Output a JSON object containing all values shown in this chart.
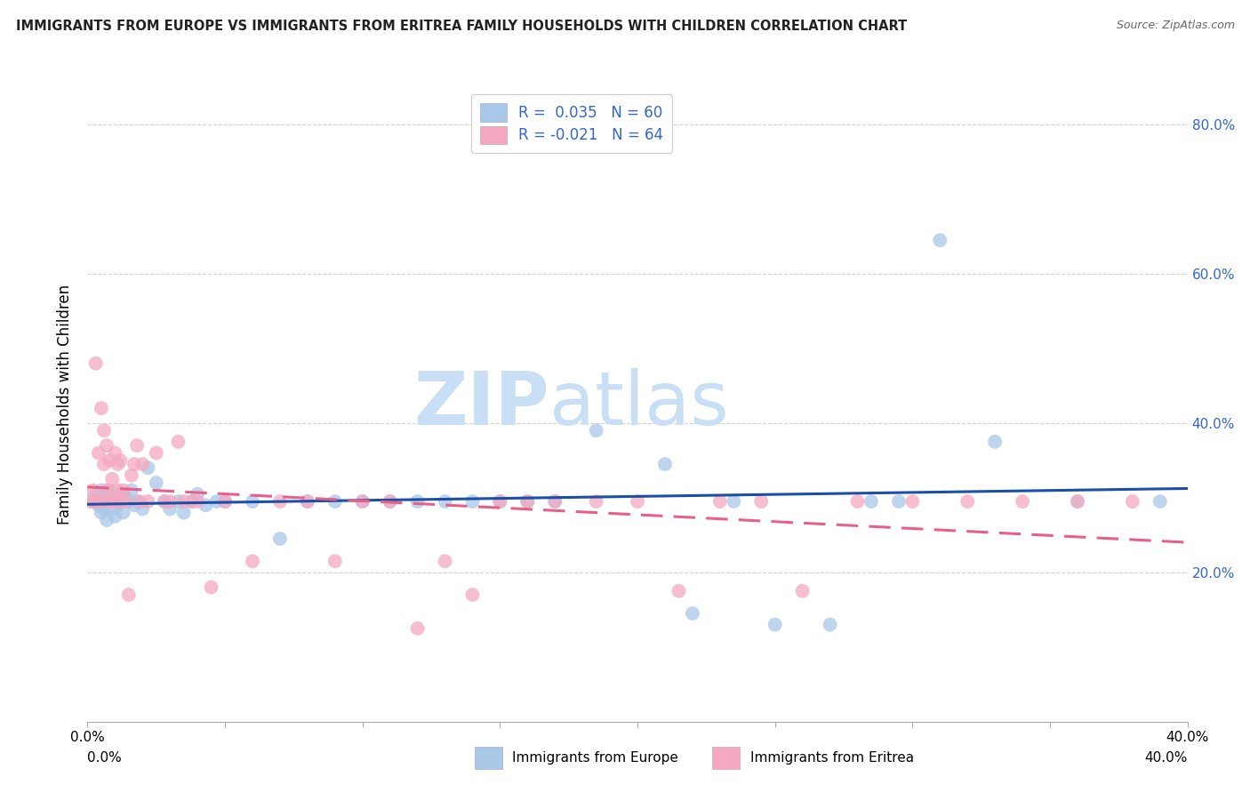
{
  "title": "IMMIGRANTS FROM EUROPE VS IMMIGRANTS FROM ERITREA FAMILY HOUSEHOLDS WITH CHILDREN CORRELATION CHART",
  "source": "Source: ZipAtlas.com",
  "xlabel_bottom": [
    "Immigrants from Europe",
    "Immigrants from Eritrea"
  ],
  "ylabel": "Family Households with Children",
  "xlim": [
    0.0,
    0.4
  ],
  "ylim": [
    0.0,
    0.85
  ],
  "right_yticks": [
    0.2,
    0.4,
    0.6,
    0.8
  ],
  "right_yticklabels": [
    "20.0%",
    "40.0%",
    "60.0%",
    "80.0%"
  ],
  "xtick_positions": [
    0.0,
    0.05,
    0.1,
    0.15,
    0.2,
    0.25,
    0.3,
    0.35,
    0.4
  ],
  "xticklabels": [
    "0.0%",
    "",
    "",
    "",
    "",
    "",
    "",
    "",
    "40.0%"
  ],
  "europe_color": "#a8c8e8",
  "eritrea_color": "#f4a8c0",
  "europe_line_color": "#1a4faa",
  "eritrea_line_color": "#e8608a",
  "background_color": "#ffffff",
  "grid_color": "#cccccc",
  "europe_scatter_x": [
    0.002,
    0.003,
    0.004,
    0.005,
    0.005,
    0.006,
    0.006,
    0.007,
    0.007,
    0.008,
    0.008,
    0.009,
    0.009,
    0.01,
    0.01,
    0.011,
    0.011,
    0.012,
    0.013,
    0.014,
    0.015,
    0.016,
    0.017,
    0.018,
    0.02,
    0.022,
    0.025,
    0.028,
    0.03,
    0.033,
    0.035,
    0.038,
    0.04,
    0.043,
    0.047,
    0.05,
    0.06,
    0.07,
    0.08,
    0.09,
    0.1,
    0.11,
    0.12,
    0.13,
    0.14,
    0.15,
    0.16,
    0.17,
    0.185,
    0.21,
    0.22,
    0.235,
    0.25,
    0.27,
    0.285,
    0.295,
    0.31,
    0.33,
    0.36,
    0.39
  ],
  "europe_scatter_y": [
    0.295,
    0.305,
    0.29,
    0.28,
    0.31,
    0.295,
    0.285,
    0.3,
    0.27,
    0.295,
    0.31,
    0.285,
    0.3,
    0.295,
    0.275,
    0.305,
    0.29,
    0.295,
    0.28,
    0.3,
    0.295,
    0.31,
    0.29,
    0.295,
    0.285,
    0.34,
    0.32,
    0.295,
    0.285,
    0.295,
    0.28,
    0.295,
    0.305,
    0.29,
    0.295,
    0.295,
    0.295,
    0.245,
    0.295,
    0.295,
    0.295,
    0.295,
    0.295,
    0.295,
    0.295,
    0.295,
    0.295,
    0.295,
    0.39,
    0.345,
    0.145,
    0.295,
    0.13,
    0.13,
    0.295,
    0.295,
    0.645,
    0.375,
    0.295,
    0.295
  ],
  "eritrea_scatter_x": [
    0.001,
    0.002,
    0.003,
    0.003,
    0.004,
    0.004,
    0.005,
    0.005,
    0.006,
    0.006,
    0.007,
    0.007,
    0.008,
    0.008,
    0.009,
    0.009,
    0.01,
    0.01,
    0.011,
    0.011,
    0.012,
    0.012,
    0.013,
    0.014,
    0.015,
    0.016,
    0.017,
    0.018,
    0.019,
    0.02,
    0.022,
    0.025,
    0.028,
    0.03,
    0.033,
    0.035,
    0.038,
    0.04,
    0.045,
    0.05,
    0.06,
    0.07,
    0.08,
    0.09,
    0.1,
    0.11,
    0.12,
    0.13,
    0.14,
    0.15,
    0.16,
    0.17,
    0.185,
    0.2,
    0.215,
    0.23,
    0.245,
    0.26,
    0.28,
    0.3,
    0.32,
    0.34,
    0.36,
    0.38
  ],
  "eritrea_scatter_y": [
    0.295,
    0.31,
    0.48,
    0.295,
    0.36,
    0.295,
    0.42,
    0.295,
    0.345,
    0.39,
    0.31,
    0.37,
    0.295,
    0.35,
    0.295,
    0.325,
    0.295,
    0.36,
    0.31,
    0.345,
    0.295,
    0.35,
    0.31,
    0.295,
    0.17,
    0.33,
    0.345,
    0.37,
    0.295,
    0.345,
    0.295,
    0.36,
    0.295,
    0.295,
    0.375,
    0.295,
    0.295,
    0.295,
    0.18,
    0.295,
    0.215,
    0.295,
    0.295,
    0.215,
    0.295,
    0.295,
    0.125,
    0.215,
    0.17,
    0.295,
    0.295,
    0.295,
    0.295,
    0.295,
    0.175,
    0.295,
    0.295,
    0.175,
    0.295,
    0.295,
    0.295,
    0.295,
    0.295,
    0.295
  ]
}
